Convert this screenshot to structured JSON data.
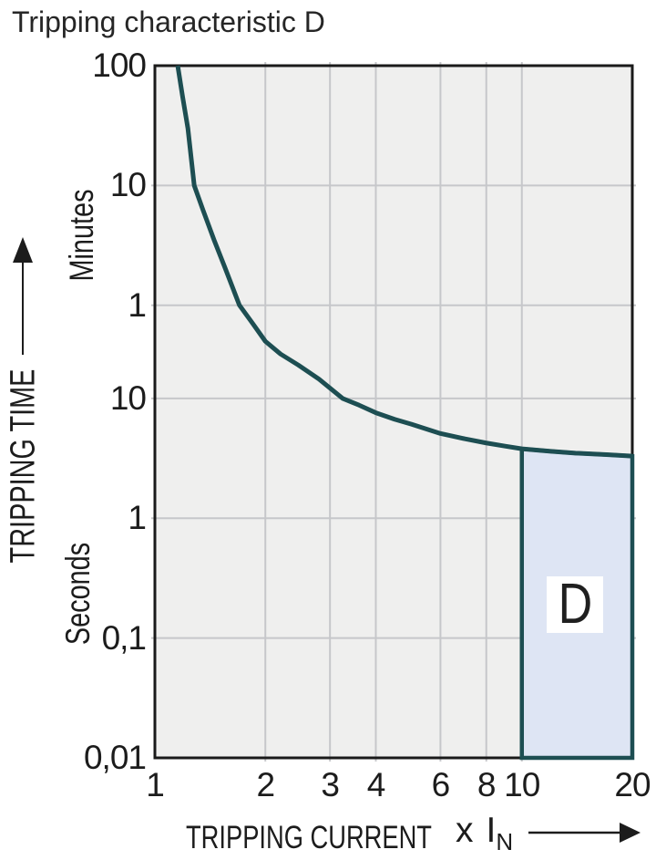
{
  "title": "Tripping characteristic D",
  "colors": {
    "curve": "#1d4e52",
    "region_fill": "#dee5f4",
    "plot_background": "#efefee",
    "gridline": "#c6c7ca",
    "plot_border": "#1a1a1a",
    "text": "#1c1c1c"
  },
  "chart_data": {
    "type": "line",
    "title": "Tripping characteristic D",
    "x_axis": {
      "title": "TRIPPING CURRENT",
      "unit_prefix": "x I",
      "unit_subscript": "N",
      "scale": "log",
      "range": [
        1,
        20
      ],
      "ticks": [
        {
          "label": "1",
          "value": 1
        },
        {
          "label": "2",
          "value": 2
        },
        {
          "label": "3",
          "value": 3
        },
        {
          "label": "4",
          "value": 4
        },
        {
          "label": "6",
          "value": 6
        },
        {
          "label": "8",
          "value": 8
        },
        {
          "label": "10",
          "value": 10
        },
        {
          "label": "20",
          "value": 20
        }
      ]
    },
    "y_axis": {
      "title": "TRIPPING TIME",
      "unit_upper": "Minutes",
      "unit_lower": "Seconds",
      "scale": "log",
      "range_seconds": [
        0.01,
        6000
      ],
      "ticks": [
        {
          "label": "100",
          "seconds": 6000
        },
        {
          "label": "10",
          "seconds": 600
        },
        {
          "label": "1",
          "seconds": 60
        },
        {
          "label": "10",
          "seconds": 10
        },
        {
          "label": "1",
          "seconds": 1
        },
        {
          "label": "0,1",
          "seconds": 0.1
        },
        {
          "label": "0,01",
          "seconds": 0.01
        }
      ]
    },
    "grid": true,
    "series": [
      {
        "name": "Tripping characteristic D curve",
        "points_multiple_seconds": [
          [
            1.154,
            6000
          ],
          [
            1.19,
            3300
          ],
          [
            1.23,
            1800
          ],
          [
            1.28,
            600
          ],
          [
            1.35,
            380
          ],
          [
            1.45,
            210
          ],
          [
            1.55,
            125
          ],
          [
            1.7,
            60
          ],
          [
            1.85,
            42
          ],
          [
            2.0,
            30
          ],
          [
            2.2,
            23.5
          ],
          [
            2.46,
            19
          ],
          [
            2.8,
            14.5
          ],
          [
            3.25,
            10
          ],
          [
            3.6,
            8.8
          ],
          [
            4,
            7.6
          ],
          [
            4.5,
            6.7
          ],
          [
            5,
            6.1
          ],
          [
            6,
            5.1
          ],
          [
            7,
            4.6
          ],
          [
            8,
            4.25
          ],
          [
            9,
            4.0
          ],
          [
            10,
            3.8
          ],
          [
            12,
            3.62
          ],
          [
            14,
            3.5
          ],
          [
            17,
            3.4
          ],
          [
            20,
            3.3
          ]
        ]
      }
    ],
    "region": {
      "label": "D",
      "x_from": 10,
      "x_to": 20,
      "bottom_seconds": 0.01,
      "top_boundary": "curve"
    }
  }
}
